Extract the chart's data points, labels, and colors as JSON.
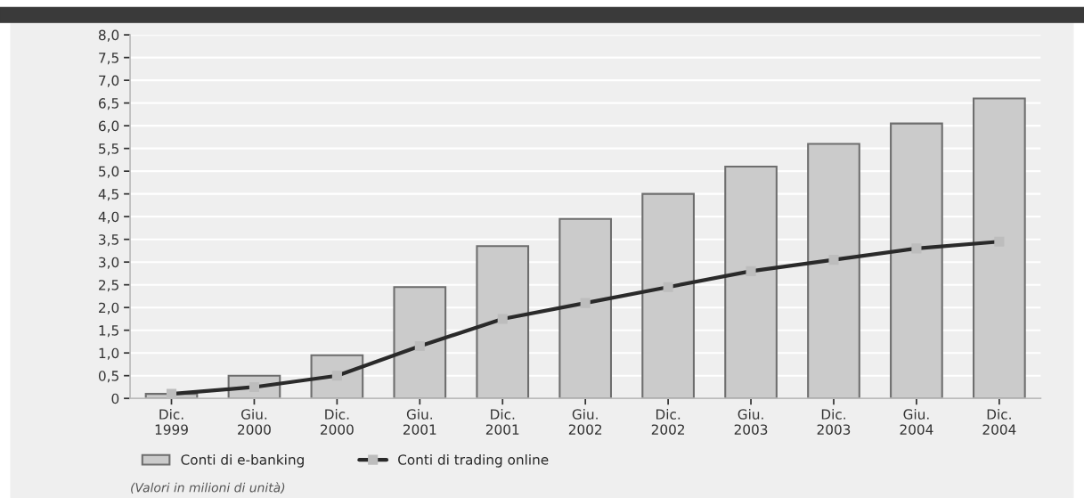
{
  "chart_data": {
    "type": "bar",
    "categories": [
      "Dic.\n1999",
      "Giu.\n2000",
      "Dic.\n2000",
      "Giu.\n2001",
      "Dic.\n2001",
      "Giu.\n2002",
      "Dic.\n2002",
      "Giu.\n2003",
      "Dic.\n2003",
      "Giu.\n2004",
      "Dic.\n2004"
    ],
    "series": [
      {
        "name": "Conti di e-banking",
        "color": "#cbcbcb",
        "values": [
          0.1,
          0.5,
          0.95,
          2.45,
          3.35,
          3.95,
          4.5,
          5.1,
          5.6,
          6.05,
          6.6
        ]
      },
      {
        "name": "Conti di trading online",
        "type": "line",
        "color": "#2a2a2a",
        "marker": "square",
        "line_style": "solid",
        "values": [
          0.1,
          0.25,
          0.5,
          1.15,
          1.75,
          2.1,
          2.45,
          2.8,
          3.05,
          3.3,
          3.45
        ]
      }
    ],
    "ylim": [
      0,
      8
    ],
    "yticks": [
      {
        "value": 0,
        "label": "0"
      },
      {
        "value": 0.5,
        "label": "0,5"
      },
      {
        "value": 1,
        "label": "1,0"
      },
      {
        "value": 1.5,
        "label": "1,5"
      },
      {
        "value": 2,
        "label": "2,0"
      },
      {
        "value": 2.5,
        "label": "2,5"
      },
      {
        "value": 3,
        "label": "3,0"
      },
      {
        "value": 3.5,
        "label": "3,5"
      },
      {
        "value": 4,
        "label": "4,0"
      },
      {
        "value": 4.5,
        "label": "4,5"
      },
      {
        "value": 5,
        "label": "5,0"
      },
      {
        "value": 5.5,
        "label": "5,5"
      },
      {
        "value": 6,
        "label": "6,0"
      },
      {
        "value": 6.5,
        "label": "6,5"
      },
      {
        "value": 7,
        "label": "7,0"
      },
      {
        "value": 7.5,
        "label": "7,5"
      },
      {
        "value": 8,
        "label": "8,0"
      }
    ],
    "grid": "y",
    "legend": "bottom left",
    "annotations": [
      "(Valori in milioni di unità)"
    ]
  }
}
